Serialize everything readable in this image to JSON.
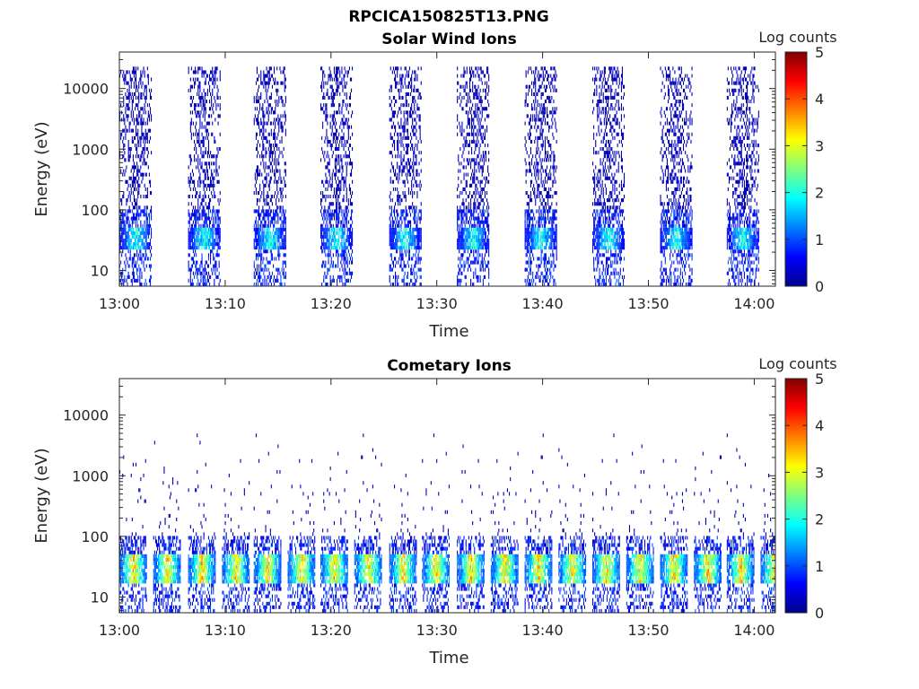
{
  "figure": {
    "title": "RPCICA150825T13.PNG"
  },
  "chart_data": [
    {
      "type": "heatmap",
      "title": "Solar Wind Ions",
      "xlabel": "Time",
      "ylabel": "Energy (eV)",
      "x_range": [
        "13:00",
        "14:02"
      ],
      "x_ticks": [
        "13:00",
        "13:10",
        "13:20",
        "13:30",
        "13:40",
        "13:50",
        "14:00"
      ],
      "y_scale": "log",
      "y_range": [
        5.5,
        40000
      ],
      "y_ticks": [
        10,
        100,
        1000,
        10000
      ],
      "colorbar": {
        "label": "Log counts",
        "range": [
          0,
          5
        ],
        "ticks": [
          0,
          1,
          2,
          3,
          4,
          5
        ],
        "colormap": "jet"
      },
      "sweeps_start_min": [
        0,
        6.5,
        12.7,
        19,
        25.5,
        31.9,
        38.3,
        44.7,
        51.1,
        57.4
      ],
      "pattern": {
        "peak_energy_eV": [
          20,
          45
        ],
        "peak_log_counts": [
          1.5,
          2.5
        ],
        "sparse_energy_eV": [
          100,
          20000
        ],
        "sparse_log_counts": 0.2
      },
      "grid": false
    },
    {
      "type": "heatmap",
      "title": "Cometary Ions",
      "xlabel": "Time",
      "ylabel": "Energy (eV)",
      "x_range": [
        "13:00",
        "14:02"
      ],
      "x_ticks": [
        "13:00",
        "13:10",
        "13:20",
        "13:30",
        "13:40",
        "13:50",
        "14:00"
      ],
      "y_scale": "log",
      "y_range": [
        5.5,
        40000
      ],
      "y_ticks": [
        10,
        100,
        1000,
        10000
      ],
      "colorbar": {
        "label": "Log counts",
        "range": [
          0,
          5
        ],
        "ticks": [
          0,
          1,
          2,
          3,
          4,
          5
        ],
        "colormap": "jet"
      },
      "sweeps_start_min": [
        0,
        3.2,
        6.5,
        9.7,
        12.7,
        15.9,
        19,
        22.2,
        25.5,
        28.6,
        31.9,
        35.1,
        38.3,
        41.5,
        44.7,
        47.9,
        51.1,
        54.3,
        57.4,
        60.6
      ],
      "pattern": {
        "peak_energy_eV": [
          15,
          45
        ],
        "peak_log_counts": [
          2.5,
          4.0
        ],
        "sparse_energy_eV": [
          40,
          10000
        ],
        "sparse_log_counts": 0.2
      },
      "grid": false
    }
  ]
}
